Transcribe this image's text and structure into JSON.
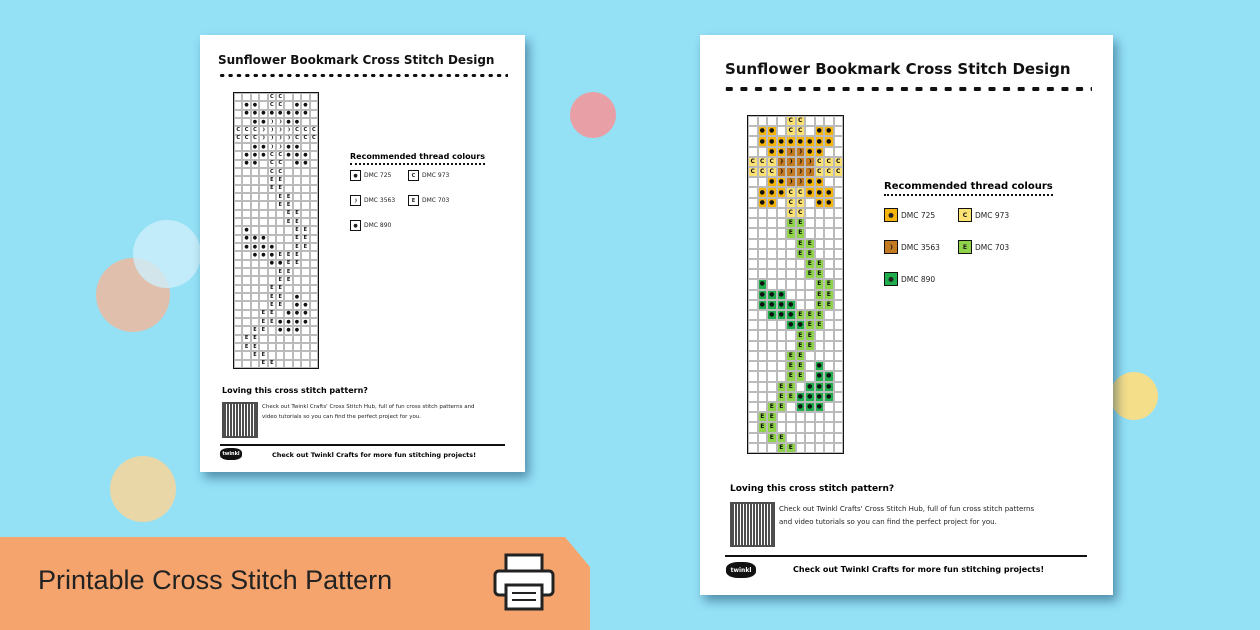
{
  "banner": {
    "label": "Printable Cross Stitch Pattern",
    "icon": "printer-icon",
    "color": "#f4a46c"
  },
  "background_color": "#94e1f6",
  "document": {
    "title": "Sunflower Bookmark Cross Stitch Design",
    "legend_heading": "Recommended thread colours",
    "threads": [
      {
        "sym": "*",
        "glyph": "●",
        "label": "DMC 725",
        "color": "#f5b50a"
      },
      {
        "sym": "C",
        "glyph": "C",
        "label": "DMC 973",
        "color": "#fbe273"
      },
      {
        "sym": "D",
        "glyph": "❩",
        "label": "DMC 3563",
        "color": "#c47a20"
      },
      {
        "sym": "E",
        "glyph": "E",
        "label": "DMC 703",
        "color": "#8fd34b"
      },
      {
        "sym": "o",
        "glyph": "●",
        "label": "DMC 890",
        "color": "#1fae4b"
      }
    ],
    "pattern": [
      "....CC....",
      ".**.CC.**.",
      ".********.",
      "..**DD**..",
      "CCCDDDDCCC",
      "CCCDDDDCCC",
      "..**DD**..",
      ".***CC***.",
      ".**.CC.**.",
      "....CC....",
      "....EE....",
      "....EE....",
      ".....EE...",
      ".....EE...",
      "......EE..",
      "......EE..",
      ".o.....EE.",
      ".ooo...EE.",
      ".oooo..EE.",
      "..oooEEE..",
      "....ooEE..",
      ".....EE...",
      ".....EE...",
      "....EE....",
      "....EE.o..",
      "....EE.oo.",
      "...EE.ooo.",
      "...EEoooo.",
      "..EE.ooo..",
      ".EE.......",
      ".EE.......",
      "..EE......",
      "...EE....."
    ],
    "footer_heading": "Loving this cross stitch pattern?",
    "footer_text": "Check out Twinkl Crafts' Cross Stitch Hub, full of fun cross stitch patterns and video tutorials so you can find the perfect project for you.",
    "bottom_line": "Check out Twinkl Crafts for more fun stitching projects!",
    "logo": "twinkl"
  }
}
